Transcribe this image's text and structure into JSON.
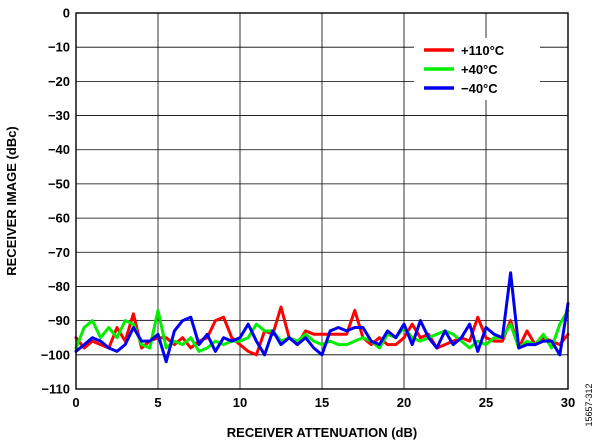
{
  "chart_data": {
    "type": "line",
    "xlabel": "RECEIVER ATTENUATION (dB)",
    "ylabel": "RECEIVER IMAGE (dBc)",
    "xlim": [
      0,
      30
    ],
    "ylim": [
      -110,
      0
    ],
    "xticks": [
      0,
      5,
      10,
      15,
      20,
      25,
      30
    ],
    "xtick_labels": [
      "0",
      "5",
      "10",
      "15",
      "20",
      "25",
      "30"
    ],
    "yticks": [
      0,
      -10,
      -20,
      -30,
      -40,
      -50,
      -60,
      -70,
      -80,
      -90,
      -100,
      -110
    ],
    "ytick_labels": [
      "0",
      "−10",
      "−20",
      "−30",
      "−40",
      "−50",
      "−60",
      "−70",
      "−80",
      "−90",
      "−100",
      "−110"
    ],
    "grid": true,
    "legend_position": "top-right",
    "x": [
      0,
      0.5,
      1,
      1.5,
      2,
      2.5,
      3,
      3.5,
      4,
      4.5,
      5,
      5.5,
      6,
      6.5,
      7,
      7.5,
      8,
      8.5,
      9,
      9.5,
      10,
      10.5,
      11,
      11.5,
      12,
      12.5,
      13,
      13.5,
      14,
      14.5,
      15,
      15.5,
      16,
      16.5,
      17,
      17.5,
      18,
      18.5,
      19,
      19.5,
      20,
      20.5,
      21,
      21.5,
      22,
      22.5,
      23,
      23.5,
      24,
      24.5,
      25,
      25.5,
      26,
      26.5,
      27,
      27.5,
      28,
      28.5,
      29,
      29.5,
      30
    ],
    "series": [
      {
        "name": "+110°C",
        "color": "#ff0000",
        "values": [
          -95,
          -98,
          -96,
          -97,
          -98,
          -92,
          -96,
          -88,
          -98,
          -96,
          -95,
          -95,
          -97,
          -95,
          -98,
          -96,
          -95,
          -90,
          -89,
          -95,
          -97,
          -99,
          -100,
          -93,
          -94,
          -86,
          -95,
          -97,
          -93,
          -94,
          -94,
          -94,
          -94,
          -94,
          -87,
          -95,
          -97,
          -95,
          -97,
          -97,
          -95,
          -91,
          -95,
          -94,
          -98,
          -97,
          -96,
          -95,
          -96,
          -89,
          -95,
          -96,
          -96,
          -90,
          -98,
          -93,
          -97,
          -95,
          -96,
          -97,
          -94
        ]
      },
      {
        "name": "+40°C",
        "color": "#00ee00",
        "values": [
          -98,
          -92,
          -90,
          -95,
          -92,
          -95,
          -90,
          -91,
          -97,
          -98,
          -87,
          -98,
          -96,
          -97,
          -95,
          -99,
          -98,
          -96,
          -97,
          -96,
          -96,
          -95,
          -91,
          -93,
          -93,
          -96,
          -95,
          -96,
          -94,
          -96,
          -97,
          -96,
          -97,
          -97,
          -96,
          -95,
          -96,
          -98,
          -94,
          -95,
          -92,
          -95,
          -96,
          -95,
          -94,
          -93,
          -94,
          -96,
          -98,
          -96,
          -97,
          -95,
          -95,
          -91,
          -98,
          -96,
          -97,
          -94,
          -98,
          -91,
          -87
        ]
      },
      {
        "name": "−40°C",
        "color": "#0000ee",
        "values": [
          -99,
          -97,
          -95,
          -96,
          -98,
          -99,
          -97,
          -92,
          -96,
          -96,
          -94,
          -102,
          -93,
          -90,
          -89,
          -97,
          -94,
          -99,
          -95,
          -96,
          -95,
          -91,
          -96,
          -100,
          -93,
          -97,
          -95,
          -97,
          -95,
          -98,
          -100,
          -93,
          -92,
          -93,
          -92,
          -92,
          -96,
          -97,
          -93,
          -95,
          -91,
          -97,
          -90,
          -95,
          -98,
          -93,
          -97,
          -95,
          -91,
          -99,
          -92,
          -94,
          -95,
          -76,
          -98,
          -97,
          -97,
          -96,
          -96,
          -100,
          -85
        ]
      }
    ],
    "figure_id": "15657-312"
  }
}
